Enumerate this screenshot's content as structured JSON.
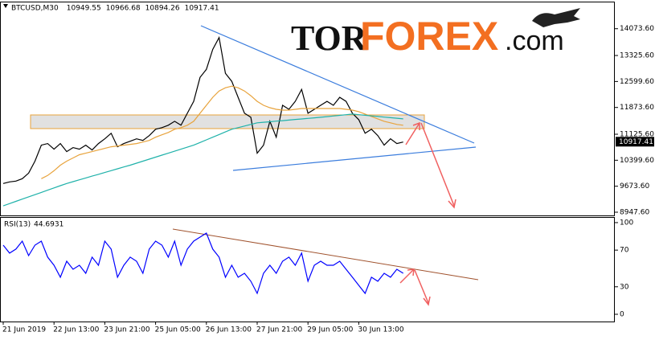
{
  "logo": {
    "tor": "TOR",
    "forex": "FOREX",
    "com": ".com"
  },
  "chart_data": [
    {
      "type": "line",
      "title": "BTCUSD,M30",
      "ohlc": [
        10949.55,
        10966.68,
        10894.26,
        10917.41
      ],
      "ylim": [
        8858,
        14831
      ],
      "yticks": [
        {
          "value": 14073.6,
          "label": "14073.60"
        },
        {
          "value": 13325.6,
          "label": "13325.60"
        },
        {
          "value": 12599.6,
          "label": "12599.60"
        },
        {
          "value": 11873.6,
          "label": "11873.60"
        },
        {
          "value": 11125.6,
          "label": "11125.60"
        },
        {
          "value": 10399.6,
          "label": "10399.60"
        },
        {
          "value": 9673.6,
          "label": "9673.60"
        },
        {
          "value": 8947.6,
          "label": "8947.60"
        }
      ],
      "series": [
        {
          "color": "#000000",
          "values": [
            9750,
            9795,
            9817,
            9884,
            10040,
            10374,
            10820,
            10865,
            10708,
            10865,
            10641,
            10753,
            10708,
            10820,
            10686,
            10865,
            10998,
            11154,
            10775,
            10865,
            10931,
            10998,
            10953,
            11087,
            11265,
            11310,
            11377,
            11488,
            11377,
            11711,
            12045,
            12714,
            12937,
            13494,
            13828,
            12825,
            12603,
            12157,
            11711,
            11600,
            10597,
            10820,
            11488,
            11043,
            11934,
            11823,
            12045,
            12380,
            11711,
            11823,
            11934,
            12045,
            11934,
            12157,
            12045,
            11711,
            11533,
            11154,
            11265,
            11087,
            10820,
            10998,
            10865,
            10909
          ]
        },
        {
          "color": "#e8a33c",
          "values": [
            null,
            null,
            null,
            null,
            null,
            null,
            9884,
            9973,
            10107,
            10262,
            10374,
            10463,
            10553,
            10597,
            10642,
            10686,
            10731,
            10775,
            10798,
            10820,
            10842,
            10865,
            10909,
            10954,
            11043,
            11110,
            11176,
            11265,
            11310,
            11377,
            11488,
            11711,
            11934,
            12157,
            12335,
            12424,
            12469,
            12424,
            12335,
            12202,
            12045,
            11934,
            11867,
            11823,
            11800,
            11800,
            11823,
            11845,
            11845,
            11845,
            11845,
            11845,
            11845,
            11845,
            11823,
            11800,
            11756,
            11689,
            11622,
            11555,
            11488,
            11444,
            11399,
            11377
          ]
        },
        {
          "color": "#20b2aa",
          "values": [
            9126,
            9188,
            9251,
            9313,
            9376,
            9438,
            9500,
            9563,
            9625,
            9688,
            9750,
            9801,
            9852,
            9904,
            9955,
            10006,
            10057,
            10108,
            10160,
            10211,
            10262,
            10318,
            10374,
            10429,
            10485,
            10541,
            10597,
            10653,
            10709,
            10764,
            10820,
            10894,
            10968,
            11042,
            11117,
            11191,
            11265,
            11310,
            11354,
            11399,
            11444,
            11460,
            11475,
            11491,
            11506,
            11522,
            11538,
            11553,
            11569,
            11584,
            11600,
            11618,
            11636,
            11653,
            11671,
            11689,
            11672,
            11655,
            11639,
            11622,
            11605,
            11588,
            11572,
            11555
          ]
        }
      ]
    },
    {
      "type": "line",
      "title": "RSI(13)",
      "last_value": 44.6931,
      "categories": [
        "21 Jun 2019",
        null,
        null,
        null,
        null,
        null,
        null,
        null,
        "22 Jun 13:00",
        null,
        null,
        null,
        null,
        null,
        null,
        null,
        "23 Jun 21:00",
        null,
        null,
        null,
        null,
        null,
        null,
        null,
        "25 Jun 05:00",
        null,
        null,
        null,
        null,
        null,
        null,
        null,
        "26 Jun 13:00",
        null,
        null,
        null,
        null,
        null,
        null,
        null,
        "27 Jun 21:00",
        null,
        null,
        null,
        null,
        null,
        null,
        null,
        "29 Jun 05:00",
        null,
        null,
        null,
        null,
        null,
        null,
        null,
        "30 Jun 13:00",
        null,
        null,
        null,
        null,
        null,
        null,
        null
      ],
      "ylim": [
        -7.9,
        106.1
      ],
      "yticks": [
        100,
        70,
        30,
        0
      ],
      "series": [
        {
          "color": "#0000ff",
          "values": [
            75.4,
            66.7,
            71.1,
            79.8,
            64.0,
            75.4,
            79.8,
            62.3,
            53.5,
            40.4,
            57.9,
            49.1,
            53.5,
            44.7,
            62.3,
            53.5,
            79.8,
            71.1,
            40.4,
            53.5,
            62.3,
            57.9,
            44.7,
            71.1,
            79.8,
            75.4,
            62.3,
            79.8,
            53.5,
            71.1,
            79.8,
            84.2,
            88.6,
            71.1,
            62.3,
            40.4,
            53.5,
            40.4,
            44.7,
            36.0,
            22.8,
            44.7,
            53.5,
            44.7,
            57.9,
            62.3,
            53.5,
            66.7,
            36.0,
            53.5,
            57.9,
            53.5,
            53.5,
            57.9,
            49.1,
            40.4,
            31.6,
            22.8,
            40.4,
            36.0,
            44.7,
            40.4,
            49.1,
            44.7
          ]
        }
      ]
    }
  ]
}
